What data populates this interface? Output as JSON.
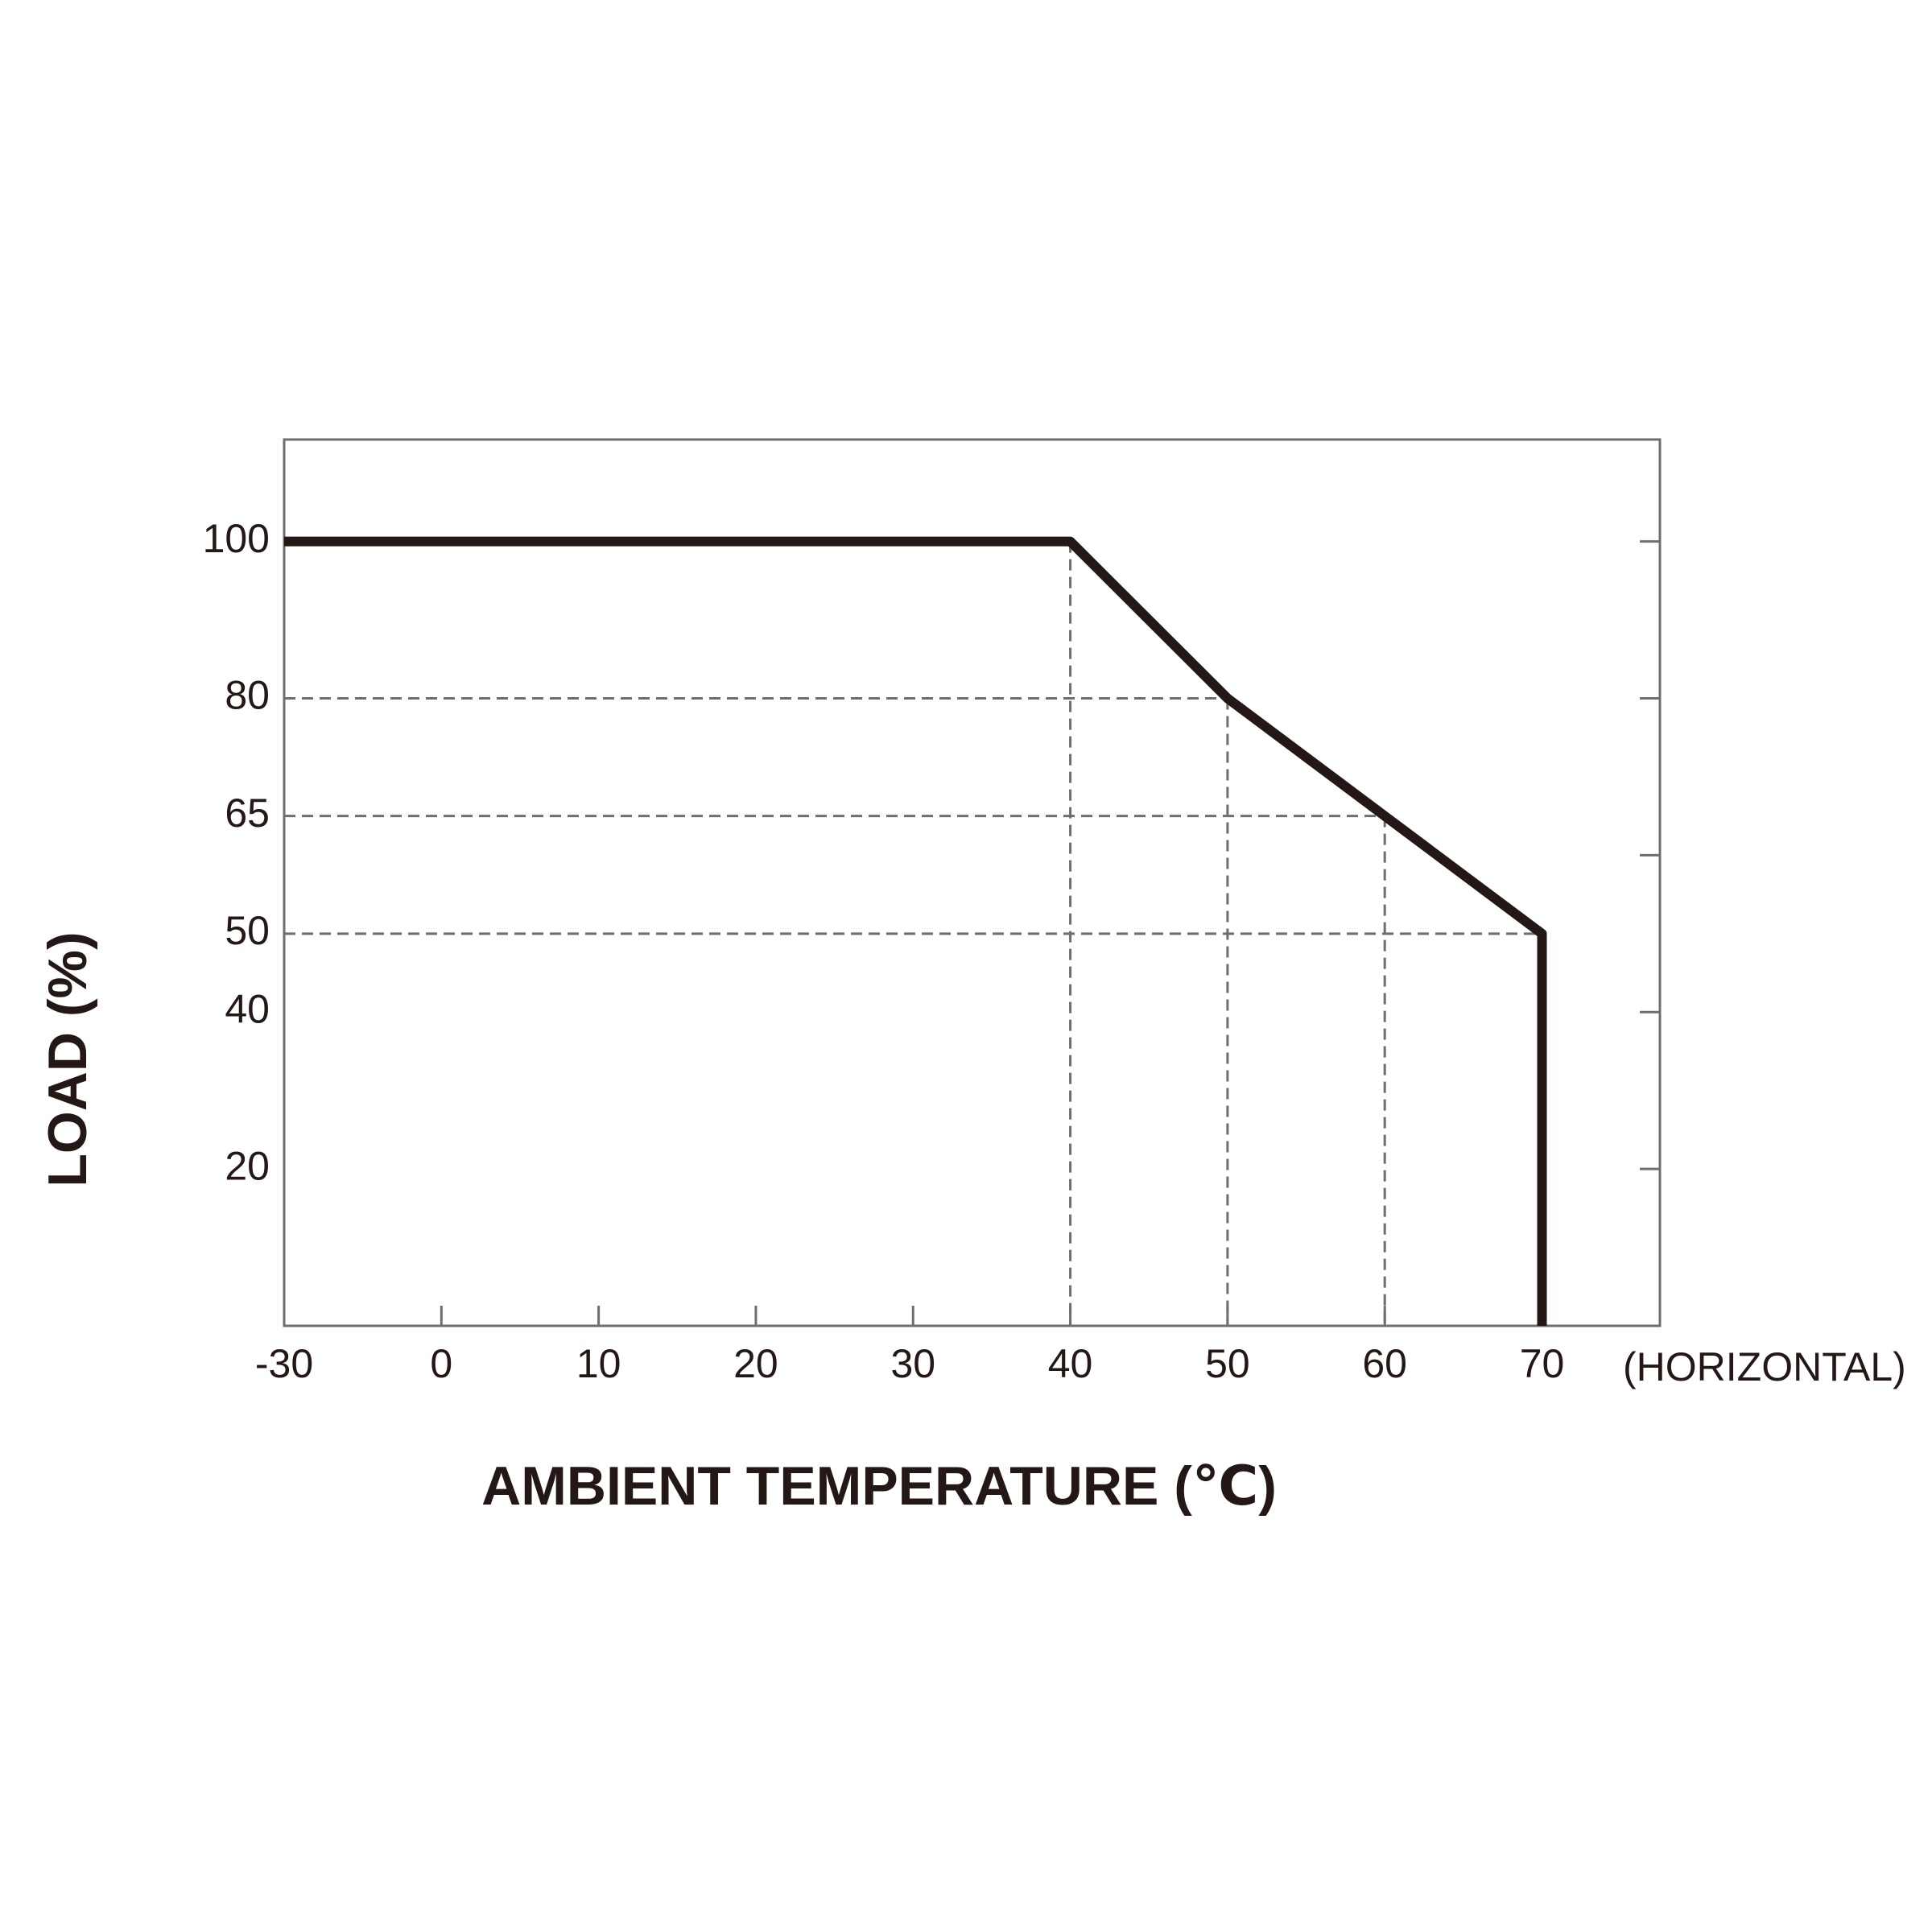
{
  "chart_data": {
    "type": "line",
    "xlabel": "AMBIENT TEMPERATURE (℃)",
    "ylabel": "LOAD (%)",
    "annotation": "(HORIZONTAL)",
    "x": [
      -30,
      40,
      50,
      60,
      70,
      70
    ],
    "values": [
      100,
      100,
      80,
      65,
      50,
      0
    ],
    "color": "#231815",
    "xlim": [
      -30,
      77.5
    ],
    "xticks": [
      -30,
      0,
      10,
      20,
      30,
      40,
      50,
      60,
      70
    ],
    "ylim": [
      0,
      113
    ],
    "yticks": [
      20,
      40,
      50,
      65,
      80,
      100
    ],
    "minor_yticks": [
      20,
      40,
      60,
      80,
      100
    ],
    "guides": true
  }
}
